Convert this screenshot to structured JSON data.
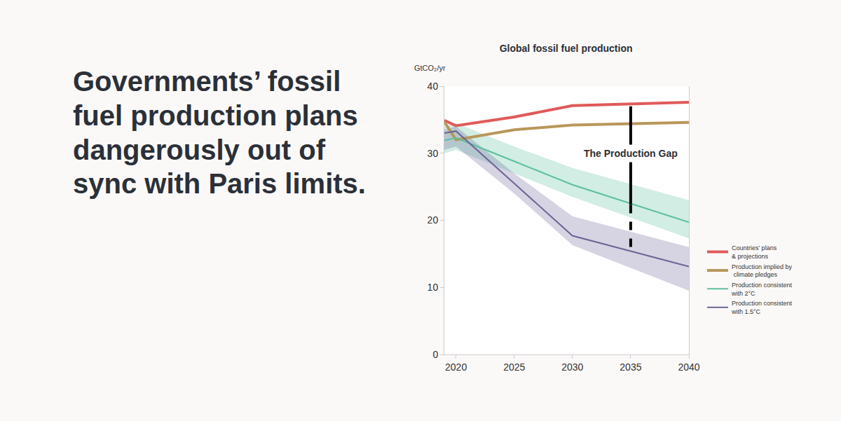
{
  "headline": "Governments’ fossil\nfuel production plans\ndangerously out of\nsync with Paris limits.",
  "chart_data": {
    "type": "line",
    "title": "Global fossil fuel production",
    "y_label": "GtCO₂/yr",
    "x": [
      2019,
      2020,
      2025,
      2030,
      2040
    ],
    "xlim": [
      2019,
      2040
    ],
    "xticks": [
      2020,
      2025,
      2030,
      2035,
      2040
    ],
    "ylim": [
      0,
      40
    ],
    "yticks": [
      0,
      10,
      20,
      30,
      40
    ],
    "grid": false,
    "legend": "right",
    "series": [
      {
        "name": "Countries’ plans\n& projections",
        "color": "#e05a5a",
        "values": [
          34.9,
          34.1,
          35.4,
          37.1,
          37.6
        ]
      },
      {
        "name": "Production implied by\n climate pledges",
        "color": "#b8975a",
        "values": [
          34.7,
          32.0,
          33.5,
          34.2,
          34.6
        ]
      },
      {
        "name": "Production consistent\nwith 2°C",
        "color": "#5bbf9f",
        "values": [
          31.9,
          32.3,
          28.8,
          25.3,
          19.7
        ],
        "lower": [
          30.0,
          30.5,
          27.0,
          23.5,
          17.3
        ],
        "upper": [
          34.0,
          34.5,
          31.0,
          27.8,
          23.0
        ]
      },
      {
        "name": "Production consistent\nwith 1.5°C",
        "color": "#6b6396",
        "values": [
          33.0,
          33.3,
          25.5,
          17.7,
          13.1
        ],
        "lower": [
          30.5,
          31.0,
          24.0,
          16.3,
          9.5
        ],
        "upper": [
          33.5,
          34.0,
          27.0,
          20.6,
          16.0
        ]
      }
    ],
    "annotations": [
      {
        "text": "The Production Gap",
        "x": 2035,
        "y": 30,
        "y_top": 37.0,
        "y_mid": 22.3,
        "y_bottom": 15.8
      }
    ]
  }
}
